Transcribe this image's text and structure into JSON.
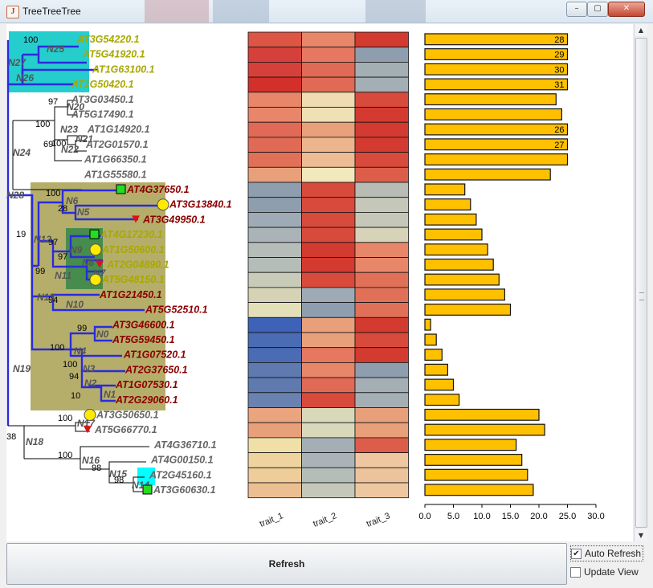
{
  "window": {
    "title": "TreeTreeTree",
    "icon": "java-cup-icon",
    "minimize_label": "–",
    "maximize_label": "▢",
    "close_label": "✕"
  },
  "tree": {
    "colors": {
      "branch_highlight": "#2b2bdc",
      "branch_default": "#000000",
      "support": "#000000",
      "internal_node_label": "#555555"
    },
    "clades": [
      {
        "name": "N25-N27 clade",
        "color": "#00c4c4"
      },
      {
        "name": "N19 clade",
        "color": "#a8a050"
      },
      {
        "name": "N9 clade",
        "color": "#3a8a4a"
      },
      {
        "name": "N14 clade",
        "color": "#00ffff"
      }
    ],
    "leaves": [
      {
        "label": "AT3G54220.1",
        "color": "#a8a800",
        "marker": null
      },
      {
        "label": "AT5G41920.1",
        "color": "#a8a800",
        "marker": null
      },
      {
        "label": "AT1G63100.1",
        "color": "#a8a800",
        "marker": null
      },
      {
        "label": "AT1G50420.1",
        "color": "#a8a800",
        "marker": null
      },
      {
        "label": "AT3G03450.1",
        "color": "#666666",
        "marker": null
      },
      {
        "label": "AT5G17490.1",
        "color": "#666666",
        "marker": null
      },
      {
        "label": "AT1G14920.1",
        "color": "#666666",
        "marker": null
      },
      {
        "label": "AT2G01570.1",
        "color": "#666666",
        "marker": null
      },
      {
        "label": "AT1G66350.1",
        "color": "#666666",
        "marker": null
      },
      {
        "label": "AT1G55580.1",
        "color": "#666666",
        "marker": null
      },
      {
        "label": "AT4G37650.1",
        "color": "#8b0000",
        "marker": "square"
      },
      {
        "label": "AT3G13840.1",
        "color": "#8b0000",
        "marker": "circle"
      },
      {
        "label": "AT3G49950.1",
        "color": "#8b0000",
        "marker": "triangle"
      },
      {
        "label": "AT4G17230.1",
        "color": "#a8a800",
        "marker": "square"
      },
      {
        "label": "AT1G50600.1",
        "color": "#a8a800",
        "marker": "circle"
      },
      {
        "label": "AT2G04890.1",
        "color": "#a8a800",
        "marker": "triangle"
      },
      {
        "label": "AT5G48150.1",
        "color": "#a8a800",
        "marker": "circle"
      },
      {
        "label": "AT1G21450.1",
        "color": "#8b0000",
        "marker": null
      },
      {
        "label": "AT5G52510.1",
        "color": "#8b0000",
        "marker": null
      },
      {
        "label": "AT3G46600.1",
        "color": "#8b0000",
        "marker": null
      },
      {
        "label": "AT5G59450.1",
        "color": "#8b0000",
        "marker": null
      },
      {
        "label": "AT1G07520.1",
        "color": "#8b0000",
        "marker": null
      },
      {
        "label": "AT2G37650.1",
        "color": "#8b0000",
        "marker": null
      },
      {
        "label": "AT1G07530.1",
        "color": "#8b0000",
        "marker": null
      },
      {
        "label": "AT2G29060.1",
        "color": "#8b0000",
        "marker": null
      },
      {
        "label": "AT3G50650.1",
        "color": "#666666",
        "marker": "circle"
      },
      {
        "label": "AT5G66770.1",
        "color": "#666666",
        "marker": "triangle"
      },
      {
        "label": "AT4G36710.1",
        "color": "#666666",
        "marker": null
      },
      {
        "label": "AT4G00150.1",
        "color": "#666666",
        "marker": null
      },
      {
        "label": "AT2G45160.1",
        "color": "#666666",
        "marker": null
      },
      {
        "label": "AT3G60630.1",
        "color": "#666666",
        "marker": "square"
      }
    ],
    "internal_nodes": [
      "N25",
      "N27",
      "N26",
      "N20",
      "N23",
      "N21",
      "N22",
      "N24",
      "N28",
      "N6",
      "N5",
      "N12",
      "N9",
      "N11",
      "N8",
      "N7",
      "N13",
      "N10",
      "N0",
      "N4",
      "N3",
      "N2",
      "N1",
      "N19",
      "N17",
      "N18",
      "N16",
      "N15",
      "N14"
    ],
    "support_values": [
      "100",
      "97",
      "100",
      "100",
      "69",
      "100",
      "28",
      "19",
      "97",
      "97",
      "99",
      "94",
      "99",
      "100",
      "100",
      "94",
      "10",
      "100",
      "38",
      "100",
      "98",
      "98"
    ]
  },
  "heatmap": {
    "traits": [
      "trait_1",
      "trait_2",
      "trait_3"
    ],
    "rows": [
      [
        "#dc5545",
        "#e8866a",
        "#d33a30"
      ],
      [
        "#d5403a",
        "#e67760",
        "#8e9eae"
      ],
      [
        "#d5403a",
        "#e06a55",
        "#a4afb5"
      ],
      [
        "#d3302c",
        "#e06a55",
        "#a4afb5"
      ],
      [
        "#e8866a",
        "#f0dcb0",
        "#d84a3c"
      ],
      [
        "#e8866a",
        "#f0e0b5",
        "#d33a30"
      ],
      [
        "#e06a55",
        "#e8a07a",
        "#d33a30"
      ],
      [
        "#e06a55",
        "#ecb58d",
        "#d33a30"
      ],
      [
        "#e07158",
        "#edbb94",
        "#d84a3c"
      ],
      [
        "#e8a07a",
        "#f1e8bb",
        "#dc5e4a"
      ],
      [
        "#8e9eae",
        "#d84a3c",
        "#b8bcb4"
      ],
      [
        "#8e9eae",
        "#d84a3c",
        "#c5c8b8"
      ],
      [
        "#9eaab6",
        "#d84a3c",
        "#c5c8b8"
      ],
      [
        "#aab4b8",
        "#d84a3c",
        "#d7d3b8"
      ],
      [
        "#b5bdb8",
        "#d33a30",
        "#e8866a"
      ],
      [
        "#b5bdb8",
        "#d33a30",
        "#e8866a"
      ],
      [
        "#c8cbb8",
        "#d84a3c",
        "#e07158"
      ],
      [
        "#d5d2b5",
        "#9eaab6",
        "#e07158"
      ],
      [
        "#e3dfb8",
        "#8e9eae",
        "#e07158"
      ],
      [
        "#3d62b8",
        "#e8a07a",
        "#d33a30"
      ],
      [
        "#4a6cb4",
        "#e8a07a",
        "#d84a3c"
      ],
      [
        "#4a6cb4",
        "#e67760",
        "#d33a30"
      ],
      [
        "#5f7aae",
        "#e8866a",
        "#8e9eae"
      ],
      [
        "#5f7aae",
        "#e06a55",
        "#a4afb5"
      ],
      [
        "#6a82b0",
        "#d84a3c",
        "#a4afb5"
      ],
      [
        "#eaa47e",
        "#d8d8bb",
        "#e8a07a"
      ],
      [
        "#e8a07a",
        "#d8d8bb",
        "#e8a07a"
      ],
      [
        "#f0e0a8",
        "#a4afb5",
        "#dc5e4a"
      ],
      [
        "#eed39e",
        "#aab4b8",
        "#eec7a0"
      ],
      [
        "#eecd9a",
        "#b5bdb8",
        "#ecc39a"
      ],
      [
        "#ecbf92",
        "#c5c8b8",
        "#eec7a0"
      ]
    ]
  },
  "chart_data": {
    "type": "bar",
    "orientation": "horizontal",
    "categories": [
      "AT3G54220.1",
      "AT5G41920.1",
      "AT1G63100.1",
      "AT1G50420.1",
      "AT3G03450.1",
      "AT5G17490.1",
      "AT1G14920.1",
      "AT2G01570.1",
      "AT1G66350.1",
      "AT1G55580.1",
      "AT4G37650.1",
      "AT3G13840.1",
      "AT3G49950.1",
      "AT4G17230.1",
      "AT1G50600.1",
      "AT2G04890.1",
      "AT5G48150.1",
      "AT1G21450.1",
      "AT5G52510.1",
      "AT3G46600.1",
      "AT5G59450.1",
      "AT1G07520.1",
      "AT2G37650.1",
      "AT1G07530.1",
      "AT2G29060.1",
      "AT3G50650.1",
      "AT5G66770.1",
      "AT4G36710.1",
      "AT4G00150.1",
      "AT2G45160.1",
      "AT3G60630.1"
    ],
    "values": [
      25,
      25,
      25,
      25,
      23,
      24,
      25,
      25,
      25,
      22,
      7,
      8,
      9,
      10,
      11,
      12,
      13,
      14,
      15,
      1,
      2,
      3,
      4,
      5,
      6,
      20,
      21,
      16,
      17,
      18,
      19
    ],
    "data_labels": [
      "28",
      "29",
      "30",
      "31",
      "",
      "",
      "26",
      "27",
      "",
      "",
      "",
      "",
      "",
      "",
      "",
      "",
      "",
      "",
      "",
      "",
      "",
      "",
      "",
      "",
      "",
      "",
      "",
      "",
      "",
      "",
      ""
    ],
    "xlim": [
      0,
      30
    ],
    "ticks": [
      "0.0",
      "5.0",
      "10.0",
      "15.0",
      "20.0",
      "25.0",
      "30.0"
    ],
    "bar_color": "#ffc000",
    "title": "",
    "xlabel": "",
    "ylabel": ""
  },
  "bottom": {
    "refresh_label": "Refresh",
    "auto_refresh_label": "Auto Refresh",
    "auto_refresh_checked": true,
    "update_view_label": "Update View",
    "update_view_checked": false
  },
  "scrollbar": {
    "up_icon": "▲",
    "down_icon": "▼"
  }
}
